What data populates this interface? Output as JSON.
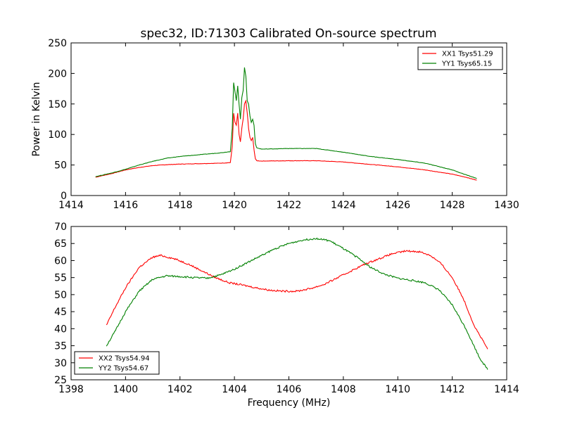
{
  "chart_data": [
    {
      "type": "line",
      "title": "spec32, ID:71303 Calibrated On-source spectrum",
      "xlabel": "",
      "ylabel": "Power in Kelvin",
      "xlim": [
        1414,
        1430
      ],
      "ylim": [
        0,
        250
      ],
      "xticks": [
        "1414",
        "1416",
        "1418",
        "1420",
        "1422",
        "1424",
        "1426",
        "1428",
        "1430"
      ],
      "yticks": [
        "0",
        "50",
        "100",
        "150",
        "200",
        "250"
      ],
      "grid": false,
      "legend_position": "top-right",
      "series": [
        {
          "name": "XX1 Tsys51.29",
          "color": "#ff0000",
          "points": [
            [
              1414.9,
              30
            ],
            [
              1415.5,
              36
            ],
            [
              1416,
              42
            ],
            [
              1416.5,
              46
            ],
            [
              1417,
              49
            ],
            [
              1417.5,
              50.5
            ],
            [
              1418,
              51.5
            ],
            [
              1418.5,
              52
            ],
            [
              1419,
              52.5
            ],
            [
              1419.5,
              53
            ],
            [
              1419.85,
              54
            ],
            [
              1419.92,
              80
            ],
            [
              1419.97,
              135
            ],
            [
              1420.02,
              120
            ],
            [
              1420.07,
              115
            ],
            [
              1420.12,
              135
            ],
            [
              1420.17,
              100
            ],
            [
              1420.22,
              88
            ],
            [
              1420.27,
              110
            ],
            [
              1420.32,
              125
            ],
            [
              1420.37,
              150
            ],
            [
              1420.42,
              155
            ],
            [
              1420.47,
              135
            ],
            [
              1420.52,
              110
            ],
            [
              1420.57,
              95
            ],
            [
              1420.62,
              90
            ],
            [
              1420.67,
              95
            ],
            [
              1420.72,
              75
            ],
            [
              1420.77,
              60
            ],
            [
              1420.82,
              57
            ],
            [
              1421,
              56.5
            ],
            [
              1422,
              57
            ],
            [
              1423,
              57
            ],
            [
              1424,
              55
            ],
            [
              1425,
              51
            ],
            [
              1426,
              47
            ],
            [
              1427,
              42
            ],
            [
              1428,
              35
            ],
            [
              1428.5,
              30
            ],
            [
              1428.9,
              25
            ]
          ]
        },
        {
          "name": "YY1 Tsys65.15",
          "color": "#008000",
          "points": [
            [
              1414.9,
              31
            ],
            [
              1415.5,
              37
            ],
            [
              1416,
              43
            ],
            [
              1416.5,
              50
            ],
            [
              1417,
              56
            ],
            [
              1417.5,
              61
            ],
            [
              1418,
              64
            ],
            [
              1418.5,
              66
            ],
            [
              1419,
              68
            ],
            [
              1419.5,
              70
            ],
            [
              1419.85,
              72
            ],
            [
              1419.92,
              110
            ],
            [
              1419.97,
              185
            ],
            [
              1420.02,
              170
            ],
            [
              1420.07,
              155
            ],
            [
              1420.12,
              180
            ],
            [
              1420.17,
              150
            ],
            [
              1420.22,
              125
            ],
            [
              1420.27,
              160
            ],
            [
              1420.32,
              172
            ],
            [
              1420.37,
              210
            ],
            [
              1420.42,
              195
            ],
            [
              1420.47,
              155
            ],
            [
              1420.52,
              150
            ],
            [
              1420.57,
              130
            ],
            [
              1420.62,
              120
            ],
            [
              1420.67,
              125
            ],
            [
              1420.72,
              115
            ],
            [
              1420.77,
              85
            ],
            [
              1420.82,
              78
            ],
            [
              1421,
              76
            ],
            [
              1422,
              77
            ],
            [
              1423,
              77
            ],
            [
              1424,
              71
            ],
            [
              1425,
              64
            ],
            [
              1426,
              59
            ],
            [
              1427,
              53
            ],
            [
              1428,
              42
            ],
            [
              1428.5,
              34
            ],
            [
              1428.9,
              28
            ]
          ]
        }
      ]
    },
    {
      "type": "line",
      "title": "",
      "xlabel": "Frequency (MHz)",
      "ylabel": "",
      "xlim": [
        1398,
        1414
      ],
      "ylim": [
        25,
        70
      ],
      "xticks": [
        "1398",
        "1400",
        "1402",
        "1404",
        "1406",
        "1408",
        "1410",
        "1412",
        "1414"
      ],
      "yticks": [
        "25",
        "30",
        "35",
        "40",
        "45",
        "50",
        "55",
        "60",
        "65",
        "70"
      ],
      "grid": false,
      "legend_position": "bottom-left",
      "series": [
        {
          "name": "XX2 Tsys54.94",
          "color": "#ff0000",
          "points": [
            [
              1399.3,
              41
            ],
            [
              1399.6,
              46
            ],
            [
              1400,
              52
            ],
            [
              1400.5,
              58
            ],
            [
              1401,
              61
            ],
            [
              1401.3,
              61.5
            ],
            [
              1401.8,
              60.5
            ],
            [
              1402.3,
              59
            ],
            [
              1402.8,
              57
            ],
            [
              1403.3,
              55
            ],
            [
              1403.8,
              53.5
            ],
            [
              1404.3,
              52.8
            ],
            [
              1404.8,
              52
            ],
            [
              1405.3,
              51.3
            ],
            [
              1405.8,
              51
            ],
            [
              1406.3,
              51
            ],
            [
              1406.8,
              51.8
            ],
            [
              1407.3,
              53
            ],
            [
              1407.8,
              55
            ],
            [
              1408.3,
              57
            ],
            [
              1408.8,
              59
            ],
            [
              1409.3,
              60.5
            ],
            [
              1409.8,
              62
            ],
            [
              1410.3,
              62.8
            ],
            [
              1410.8,
              62.6
            ],
            [
              1411.2,
              61.5
            ],
            [
              1411.6,
              59
            ],
            [
              1412,
              55
            ],
            [
              1412.4,
              49
            ],
            [
              1412.8,
              41
            ],
            [
              1413.3,
              34
            ]
          ]
        },
        {
          "name": "YY2 Tsys54.67",
          "color": "#008000",
          "points": [
            [
              1399.3,
              35
            ],
            [
              1399.6,
              39
            ],
            [
              1400,
              45
            ],
            [
              1400.5,
              51
            ],
            [
              1401,
              54.5
            ],
            [
              1401.5,
              55.5
            ],
            [
              1402,
              55.3
            ],
            [
              1402.5,
              55
            ],
            [
              1403,
              54.8
            ],
            [
              1403.5,
              55.8
            ],
            [
              1404,
              57.5
            ],
            [
              1404.5,
              59.5
            ],
            [
              1405,
              61.5
            ],
            [
              1405.5,
              63.5
            ],
            [
              1406,
              65
            ],
            [
              1406.5,
              66
            ],
            [
              1407,
              66.5
            ],
            [
              1407.5,
              65.8
            ],
            [
              1408,
              63.5
            ],
            [
              1408.5,
              61
            ],
            [
              1409,
              58
            ],
            [
              1409.5,
              56
            ],
            [
              1410,
              54.8
            ],
            [
              1410.5,
              54.2
            ],
            [
              1411,
              53.5
            ],
            [
              1411.5,
              51.5
            ],
            [
              1412,
              47
            ],
            [
              1412.5,
              40
            ],
            [
              1413,
              31.5
            ],
            [
              1413.3,
              28
            ]
          ]
        }
      ]
    }
  ]
}
